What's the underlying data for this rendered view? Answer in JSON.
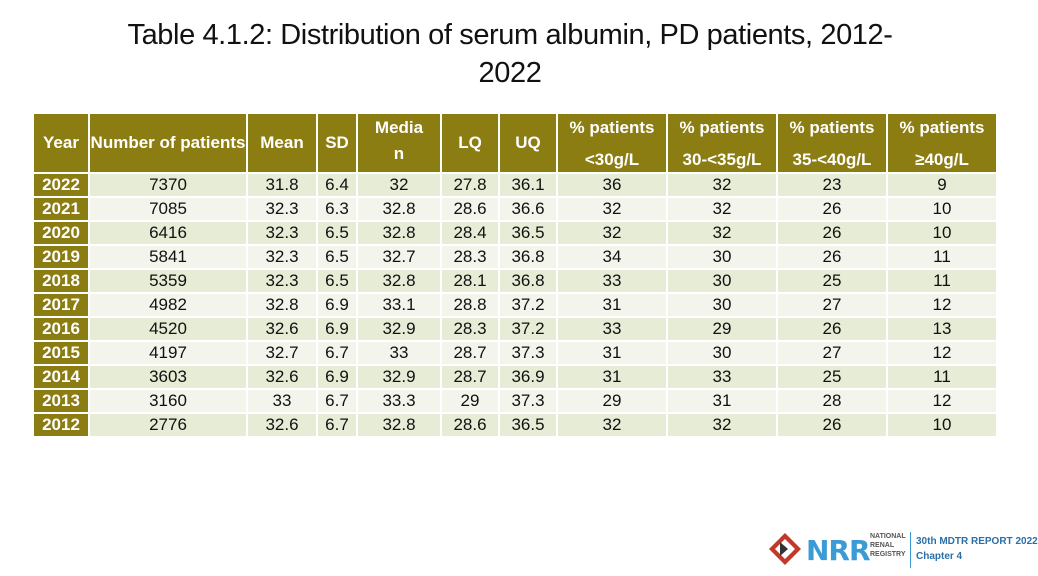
{
  "title": {
    "line1": "Table 4.1.2: Distribution of serum albumin, PD patients, 2012-",
    "line2": "2022"
  },
  "table": {
    "headers": {
      "year": "Year",
      "number": "Number of patients",
      "mean": "Mean",
      "sd": "SD",
      "median_a": "Media",
      "median_b": "n",
      "lq": "LQ",
      "uq": "UQ",
      "p1_a": "% patients",
      "p1_b": "<30g/L",
      "p2_a": "% patients",
      "p2_b": "30-<35g/L",
      "p3_a": "% patients",
      "p3_b": "35-<40g/L",
      "p4_a": "% patients",
      "p4_b": "≥40g/L"
    },
    "rows": [
      [
        "2022",
        "7370",
        "31.8",
        "6.4",
        "32",
        "27.8",
        "36.1",
        "36",
        "32",
        "23",
        "9"
      ],
      [
        "2021",
        "7085",
        "32.3",
        "6.3",
        "32.8",
        "28.6",
        "36.6",
        "32",
        "32",
        "26",
        "10"
      ],
      [
        "2020",
        "6416",
        "32.3",
        "6.5",
        "32.8",
        "28.4",
        "36.5",
        "32",
        "32",
        "26",
        "10"
      ],
      [
        "2019",
        "5841",
        "32.3",
        "6.5",
        "32.7",
        "28.3",
        "36.8",
        "34",
        "30",
        "26",
        "11"
      ],
      [
        "2018",
        "5359",
        "32.3",
        "6.5",
        "32.8",
        "28.1",
        "36.8",
        "33",
        "30",
        "25",
        "11"
      ],
      [
        "2017",
        "4982",
        "32.8",
        "6.9",
        "33.1",
        "28.8",
        "37.2",
        "31",
        "30",
        "27",
        "12"
      ],
      [
        "2016",
        "4520",
        "32.6",
        "6.9",
        "32.9",
        "28.3",
        "37.2",
        "33",
        "29",
        "26",
        "13"
      ],
      [
        "2015",
        "4197",
        "32.7",
        "6.7",
        "33",
        "28.7",
        "37.3",
        "31",
        "30",
        "27",
        "12"
      ],
      [
        "2014",
        "3603",
        "32.6",
        "6.9",
        "32.9",
        "28.7",
        "36.9",
        "31",
        "33",
        "25",
        "11"
      ],
      [
        "2013",
        "3160",
        "33",
        "6.7",
        "33.3",
        "29",
        "37.3",
        "29",
        "31",
        "28",
        "12"
      ],
      [
        "2012",
        "2776",
        "32.6",
        "6.7",
        "32.8",
        "28.6",
        "36.5",
        "32",
        "32",
        "26",
        "10"
      ]
    ]
  },
  "footer": {
    "logo_text": "NRR",
    "registry_line1": "NATIONAL",
    "registry_line2": "RENAL",
    "registry_line3": "REGISTRY",
    "report_line1": "30th MDTR REPORT 2022",
    "report_line2": "Chapter 4"
  },
  "colors": {
    "header_bg": "#8c7d12",
    "row_odd": "#e6ecd6",
    "row_even": "#f3f5ec",
    "logo_blue": "#3b9bd6"
  }
}
